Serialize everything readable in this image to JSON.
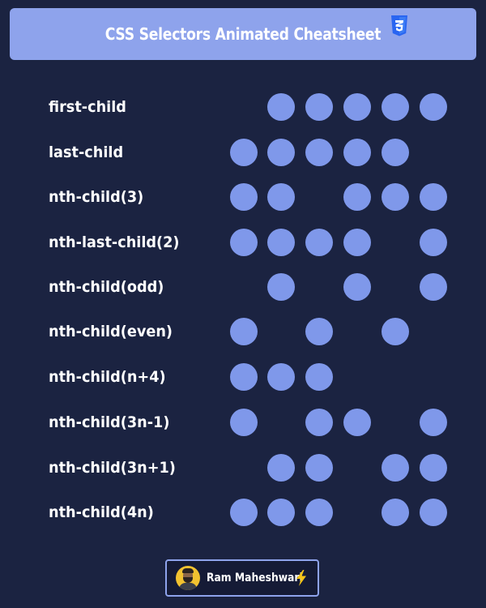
{
  "header": {
    "title": "CSS Selectors Animated Cheatsheet",
    "icon": "css3-shield-icon",
    "icon_color": "#2965f1",
    "background": "#8ea3ec"
  },
  "colors": {
    "background": "#1b2341",
    "dot": "#7f98ea",
    "text": "#ffffff"
  },
  "rows": [
    {
      "label": "first-child",
      "dots": [
        0,
        1,
        1,
        1,
        1,
        1
      ]
    },
    {
      "label": "last-child",
      "dots": [
        1,
        1,
        1,
        1,
        1,
        0
      ]
    },
    {
      "label": "nth-child(3)",
      "dots": [
        1,
        1,
        0,
        1,
        1,
        1
      ]
    },
    {
      "label": "nth-last-child(2)",
      "dots": [
        1,
        1,
        1,
        1,
        0,
        1
      ]
    },
    {
      "label": "nth-child(odd)",
      "dots": [
        0,
        1,
        0,
        1,
        0,
        1
      ]
    },
    {
      "label": "nth-child(even)",
      "dots": [
        1,
        0,
        1,
        0,
        1,
        0
      ]
    },
    {
      "label": "nth-child(n+4)",
      "dots": [
        1,
        1,
        1,
        0,
        0,
        0
      ]
    },
    {
      "label": "nth-child(3n-1)",
      "dots": [
        1,
        0,
        1,
        1,
        0,
        1
      ]
    },
    {
      "label": "nth-child(3n+1)",
      "dots": [
        0,
        1,
        1,
        0,
        1,
        1
      ]
    },
    {
      "label": "nth-child(4n)",
      "dots": [
        1,
        1,
        1,
        0,
        1,
        1
      ]
    }
  ],
  "author": {
    "name": "Ram Maheshwari",
    "avatar": "avatar-icon",
    "badge_icon": "lightning-bolt-icon"
  }
}
